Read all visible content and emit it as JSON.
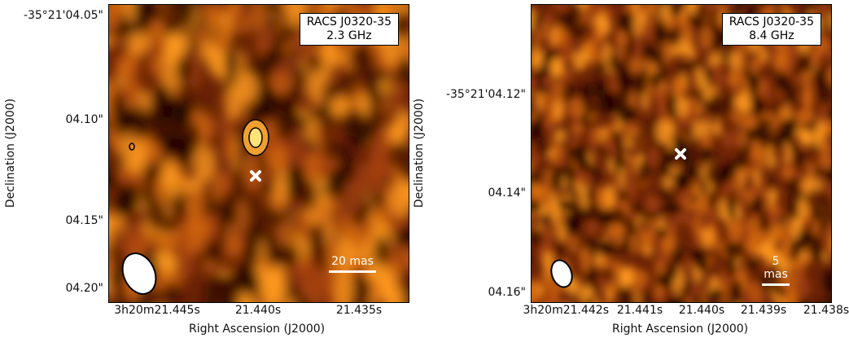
{
  "panels": [
    {
      "label_line1": "RACS J0320-35",
      "label_line2": "2.3 GHz",
      "scalebar": "20 mas",
      "xticks": [
        "3h20m21.445s",
        "21.440s",
        "21.435s"
      ],
      "yticks": [
        "-35°21'04.05\"",
        "04.10\"",
        "04.15\"",
        "04.20\""
      ],
      "xlabel": "Right Ascension (J2000)",
      "ylabel": "Declination (J2000)"
    },
    {
      "label_line1": "RACS J0320-35",
      "label_line2": "8.4 GHz",
      "scalebar": "5 mas",
      "xticks": [
        "3h20m21.442s",
        "21.441s",
        "21.440s",
        "21.439s",
        "21.438s"
      ],
      "yticks": [
        "-35°21'04.12\"",
        "04.14\"",
        "04.16\""
      ],
      "xlabel": "Right Ascension (J2000)",
      "ylabel": "Declination (J2000)"
    }
  ],
  "colormap": {
    "low": "#1a0500",
    "mid": "#a8420a",
    "high": "#ff9a1f"
  },
  "marker_icon": "white-cross"
}
